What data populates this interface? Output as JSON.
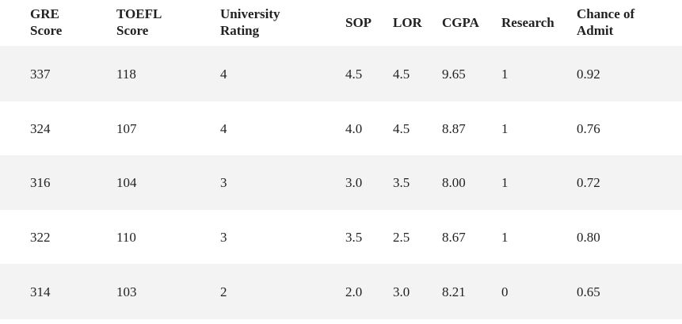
{
  "table": {
    "header": [
      "GRE Score",
      "TOEFL Score",
      "University Rating",
      "SOP",
      "LOR",
      "CGPA",
      "Research",
      "Chance of Admit"
    ],
    "rows": [
      [
        "337",
        "118",
        "4",
        "4.5",
        "4.5",
        "9.65",
        "1",
        "0.92"
      ],
      [
        "324",
        "107",
        "4",
        "4.0",
        "4.5",
        "8.87",
        "1",
        "0.76"
      ],
      [
        "316",
        "104",
        "3",
        "3.0",
        "3.5",
        "8.00",
        "1",
        "0.72"
      ],
      [
        "322",
        "110",
        "3",
        "3.5",
        "2.5",
        "8.67",
        "1",
        "0.80"
      ],
      [
        "314",
        "103",
        "2",
        "2.0",
        "3.0",
        "8.21",
        "0",
        "0.65"
      ]
    ]
  }
}
